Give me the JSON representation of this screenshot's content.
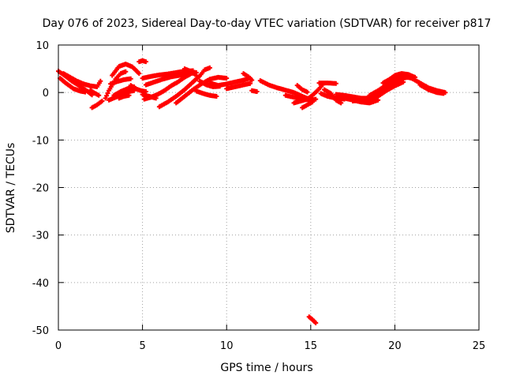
{
  "chart_data": {
    "type": "scatter",
    "title": "Day 076 of 2023, Sidereal Day-to-day VTEC variation (SDTVAR) for receiver p817",
    "xlabel": "GPS time / hours",
    "ylabel": "SDTVAR / TECUs",
    "xlim": [
      0,
      25
    ],
    "ylim": [
      -50,
      10
    ],
    "xticks": [
      0,
      5,
      10,
      15,
      20,
      25
    ],
    "yticks": [
      10,
      0,
      -10,
      -20,
      -30,
      -40,
      -50
    ],
    "xtick_labels": [
      "0",
      "5",
      "10",
      "15",
      "20",
      "25"
    ],
    "ytick_labels": [
      "10",
      "0",
      "-10",
      "-20",
      "-30",
      "-40",
      "-50"
    ],
    "grid": true,
    "marker": "plus",
    "colors": {
      "series": "#ff0000",
      "axis": "#000000",
      "grid": "#a0a0a0"
    },
    "series": [
      {
        "name": "p817",
        "tracks": [
          [
            [
              0.0,
              4.5
            ],
            [
              0.4,
              3.5
            ],
            [
              0.8,
              2.4
            ],
            [
              1.2,
              1.5
            ],
            [
              1.6,
              0.6
            ],
            [
              2.0,
              -0.5
            ]
          ],
          [
            [
              0.1,
              3.0
            ],
            [
              0.5,
              1.8
            ],
            [
              0.9,
              0.8
            ],
            [
              1.3,
              0.3
            ],
            [
              1.6,
              0.1
            ]
          ],
          [
            [
              0.3,
              4.0
            ],
            [
              0.7,
              3.2
            ],
            [
              1.1,
              2.4
            ],
            [
              1.5,
              1.8
            ],
            [
              1.9,
              1.4
            ],
            [
              2.3,
              1.2
            ],
            [
              2.5,
              2.4
            ]
          ],
          [
            [
              1.9,
              0.5
            ],
            [
              2.1,
              0.0
            ],
            [
              2.4,
              -0.6
            ]
          ],
          [
            [
              2.0,
              -3.2
            ],
            [
              2.3,
              -2.6
            ],
            [
              2.6,
              -1.8
            ]
          ],
          [
            [
              2.8,
              -1.2
            ],
            [
              3.0,
              0.4
            ],
            [
              3.2,
              1.6
            ],
            [
              3.4,
              2.8
            ],
            [
              3.7,
              4.0
            ],
            [
              4.0,
              4.4
            ]
          ],
          [
            [
              3.0,
              -1.6
            ],
            [
              3.4,
              -1.0
            ],
            [
              3.8,
              -0.4
            ],
            [
              4.2,
              0.2
            ],
            [
              4.5,
              0.4
            ]
          ],
          [
            [
              3.2,
              3.6
            ],
            [
              3.6,
              5.5
            ],
            [
              4.0,
              6.0
            ],
            [
              4.4,
              5.4
            ],
            [
              4.8,
              4.0
            ]
          ],
          [
            [
              3.1,
              1.8
            ],
            [
              3.5,
              2.3
            ],
            [
              3.9,
              2.7
            ],
            [
              4.3,
              2.9
            ]
          ],
          [
            [
              3.3,
              -0.6
            ],
            [
              3.7,
              0.2
            ],
            [
              4.1,
              0.8
            ],
            [
              4.5,
              1.2
            ]
          ],
          [
            [
              3.6,
              -1.2
            ],
            [
              3.9,
              -0.8
            ],
            [
              4.2,
              -0.6
            ]
          ],
          [
            [
              4.3,
              1.5
            ],
            [
              4.6,
              0.8
            ],
            [
              4.9,
              0.4
            ],
            [
              5.2,
              0.2
            ]
          ],
          [
            [
              4.8,
              6.5
            ],
            [
              5.0,
              6.7
            ],
            [
              5.2,
              6.5
            ]
          ],
          [
            [
              5.0,
              3.0
            ],
            [
              5.5,
              3.4
            ],
            [
              6.0,
              3.7
            ],
            [
              6.5,
              3.9
            ],
            [
              7.0,
              4.2
            ],
            [
              7.5,
              4.5
            ],
            [
              8.0,
              4.6
            ]
          ],
          [
            [
              5.2,
              1.6
            ],
            [
              5.7,
              2.2
            ],
            [
              6.2,
              2.8
            ],
            [
              6.7,
              3.3
            ],
            [
              7.2,
              3.6
            ],
            [
              7.7,
              3.6
            ]
          ],
          [
            [
              5.0,
              -0.4
            ],
            [
              5.4,
              -0.8
            ],
            [
              5.8,
              -1.2
            ]
          ],
          [
            [
              5.1,
              -1.4
            ],
            [
              5.5,
              -1.0
            ],
            [
              5.9,
              -0.4
            ],
            [
              6.3,
              0.4
            ],
            [
              6.7,
              1.4
            ],
            [
              7.1,
              2.2
            ],
            [
              7.5,
              3.2
            ],
            [
              7.9,
              4.0
            ],
            [
              8.2,
              4.2
            ]
          ],
          [
            [
              6.0,
              -3.0
            ],
            [
              6.5,
              -2.0
            ],
            [
              7.0,
              -0.8
            ],
            [
              7.5,
              0.6
            ],
            [
              8.0,
              2.2
            ],
            [
              8.4,
              3.5
            ],
            [
              8.7,
              4.8
            ],
            [
              9.0,
              5.2
            ]
          ],
          [
            [
              7.0,
              -2.2
            ],
            [
              7.5,
              -0.8
            ],
            [
              8.0,
              0.6
            ],
            [
              8.5,
              1.8
            ],
            [
              9.0,
              2.8
            ],
            [
              9.5,
              3.2
            ],
            [
              10.0,
              3.0
            ]
          ],
          [
            [
              7.5,
              5.0
            ],
            [
              7.9,
              4.4
            ],
            [
              8.2,
              3.6
            ]
          ],
          [
            [
              8.2,
              0.3
            ],
            [
              8.6,
              -0.2
            ],
            [
              9.0,
              -0.6
            ],
            [
              9.4,
              -0.8
            ]
          ],
          [
            [
              8.4,
              2.4
            ],
            [
              8.8,
              1.6
            ],
            [
              9.2,
              1.2
            ],
            [
              9.6,
              1.3
            ]
          ],
          [
            [
              9.0,
              2.0
            ],
            [
              9.5,
              1.5
            ],
            [
              10.0,
              1.8
            ],
            [
              10.5,
              2.2
            ],
            [
              11.0,
              2.6
            ],
            [
              11.4,
              3.0
            ]
          ],
          [
            [
              10.0,
              0.8
            ],
            [
              10.5,
              1.2
            ],
            [
              11.0,
              1.6
            ],
            [
              11.4,
              1.9
            ]
          ],
          [
            [
              11.0,
              4.0
            ],
            [
              11.3,
              3.3
            ],
            [
              11.5,
              2.6
            ]
          ],
          [
            [
              11.5,
              0.4
            ],
            [
              11.8,
              0.2
            ]
          ],
          [
            [
              12.0,
              2.5
            ],
            [
              12.5,
              1.6
            ],
            [
              13.0,
              1.0
            ],
            [
              13.5,
              0.5
            ],
            [
              14.0,
              0.0
            ],
            [
              14.5,
              -0.8
            ],
            [
              14.9,
              -1.4
            ]
          ],
          [
            [
              13.5,
              -0.6
            ],
            [
              14.0,
              -1.0
            ],
            [
              14.5,
              -1.4
            ],
            [
              15.0,
              -1.6
            ],
            [
              15.3,
              -1.4
            ]
          ],
          [
            [
              14.0,
              -2.2
            ],
            [
              14.4,
              -1.8
            ],
            [
              14.8,
              -1.4
            ],
            [
              15.1,
              -0.6
            ],
            [
              15.4,
              0.4
            ],
            [
              15.7,
              1.6
            ]
          ],
          [
            [
              14.2,
              1.5
            ],
            [
              14.5,
              0.6
            ],
            [
              14.8,
              0.1
            ]
          ],
          [
            [
              14.5,
              -3.2
            ],
            [
              14.8,
              -2.6
            ],
            [
              15.1,
              -2.0
            ]
          ],
          [
            [
              14.9,
              -47.2
            ],
            [
              15.1,
              -47.8
            ],
            [
              15.3,
              -48.5
            ]
          ],
          [
            [
              15.5,
              2.0
            ],
            [
              16.0,
              2.0
            ],
            [
              16.5,
              1.9
            ]
          ],
          [
            [
              15.6,
              -0.2
            ],
            [
              16.0,
              -0.8
            ],
            [
              16.5,
              -1.2
            ],
            [
              17.0,
              -1.4
            ]
          ],
          [
            [
              15.8,
              0.6
            ],
            [
              16.2,
              -0.2
            ],
            [
              16.5,
              -1.6
            ],
            [
              16.8,
              -2.2
            ]
          ],
          [
            [
              16.5,
              -0.4
            ],
            [
              17.0,
              -0.6
            ],
            [
              17.5,
              -0.9
            ],
            [
              18.0,
              -1.2
            ],
            [
              18.5,
              -1.2
            ]
          ],
          [
            [
              17.0,
              -1.2
            ],
            [
              17.5,
              -1.6
            ],
            [
              18.0,
              -2.0
            ],
            [
              18.5,
              -2.2
            ],
            [
              19.0,
              -1.6
            ]
          ],
          [
            [
              17.5,
              -1.8
            ],
            [
              18.0,
              -1.6
            ],
            [
              18.5,
              -1.0
            ],
            [
              19.0,
              -0.2
            ],
            [
              19.5,
              0.8
            ],
            [
              20.0,
              2.0
            ],
            [
              20.5,
              3.0
            ],
            [
              21.0,
              3.4
            ]
          ],
          [
            [
              18.5,
              -0.6
            ],
            [
              19.0,
              0.4
            ],
            [
              19.5,
              1.6
            ],
            [
              20.0,
              2.8
            ],
            [
              20.5,
              3.4
            ],
            [
              21.0,
              3.0
            ],
            [
              21.5,
              2.0
            ],
            [
              22.0,
              1.0
            ],
            [
              22.5,
              0.4
            ],
            [
              23.0,
              0.0
            ]
          ],
          [
            [
              18.0,
              -1.4
            ],
            [
              18.5,
              -1.6
            ],
            [
              19.0,
              -0.8
            ],
            [
              19.5,
              0.4
            ],
            [
              20.0,
              1.4
            ],
            [
              20.5,
              2.2
            ]
          ],
          [
            [
              19.3,
              2.0
            ],
            [
              19.7,
              2.8
            ],
            [
              20.0,
              3.6
            ],
            [
              20.4,
              4.0
            ],
            [
              20.8,
              3.8
            ],
            [
              21.2,
              3.2
            ]
          ],
          [
            [
              21.5,
              1.6
            ],
            [
              22.0,
              0.6
            ],
            [
              22.5,
              0.0
            ],
            [
              22.9,
              -0.2
            ]
          ]
        ]
      }
    ]
  }
}
